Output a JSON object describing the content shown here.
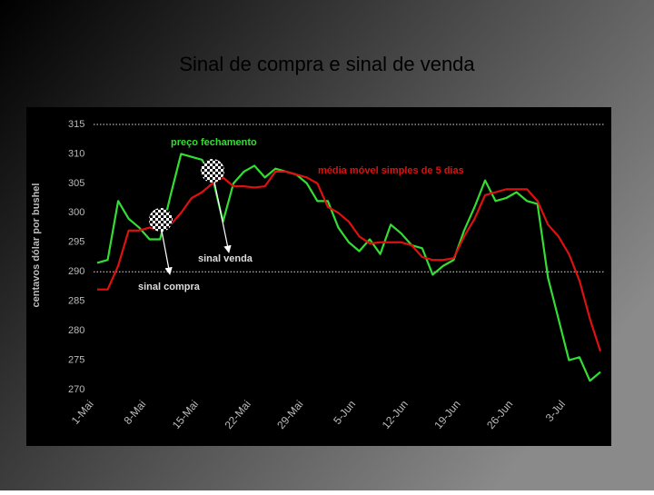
{
  "chart_data": {
    "type": "line",
    "title": "Sinal de compra e sinal de venda",
    "ylabel": "centavos dólar por bushel",
    "x": [
      0,
      1,
      2,
      3,
      4,
      5,
      6,
      7,
      8,
      9,
      10,
      11,
      12,
      13,
      14,
      15,
      16,
      17,
      18,
      19,
      20,
      21,
      22,
      23,
      24,
      25,
      26,
      27,
      28,
      29,
      30,
      31,
      32,
      33,
      34,
      35,
      36,
      37,
      38,
      39,
      40,
      41,
      42,
      43,
      44,
      45,
      46,
      47,
      48
    ],
    "xlim": [
      0,
      48
    ],
    "xticks": [
      {
        "value": 0,
        "label": "1-Mai"
      },
      {
        "value": 5,
        "label": "8-Mai"
      },
      {
        "value": 10,
        "label": "15-Mai"
      },
      {
        "value": 15,
        "label": "22-Mai"
      },
      {
        "value": 20,
        "label": "29-Mai"
      },
      {
        "value": 25,
        "label": "5-Jun"
      },
      {
        "value": 30,
        "label": "12-Jun"
      },
      {
        "value": 35,
        "label": "19-Jun"
      },
      {
        "value": 40,
        "label": "26-Jun"
      },
      {
        "value": 45,
        "label": "3-Jul"
      }
    ],
    "ylim": [
      270,
      315
    ],
    "yticks": [
      270,
      275,
      280,
      285,
      290,
      295,
      300,
      305,
      310,
      315
    ],
    "dotted_lines": [
      315,
      290
    ],
    "series": [
      {
        "name": "preço fechamento",
        "color": "#33dd33",
        "values": [
          291.5,
          292,
          302,
          299,
          297.5,
          295.5,
          295.5,
          303,
          310,
          309.5,
          309,
          306,
          298.5,
          305,
          307,
          308,
          306,
          307.5,
          307,
          306.5,
          305,
          302,
          302,
          297.5,
          295,
          293.5,
          295.5,
          293,
          298,
          296.5,
          294.5,
          294,
          289.5,
          291,
          292,
          297,
          301,
          305.5,
          302,
          302.5,
          303.5,
          302,
          301.5,
          289,
          282,
          275,
          275.5,
          271.5,
          273
        ]
      },
      {
        "name": "média móvel simples de 5 dias",
        "color": "#dd1111",
        "values": [
          287,
          287,
          291,
          297,
          297,
          297.5,
          297,
          298,
          300,
          302.5,
          303.5,
          305,
          306,
          304.5,
          304.5,
          304.3,
          304.5,
          307,
          307,
          306.5,
          306,
          305,
          301,
          300,
          298.5,
          296,
          294.8,
          295,
          295,
          295,
          294.5,
          292.5,
          292,
          292,
          292.3,
          296,
          299,
          303,
          303.5,
          304,
          304,
          304,
          302,
          298,
          296,
          293,
          288.5,
          282,
          276.5
        ]
      }
    ],
    "annotations": [
      "sinal venda",
      "sinal compra"
    ]
  }
}
